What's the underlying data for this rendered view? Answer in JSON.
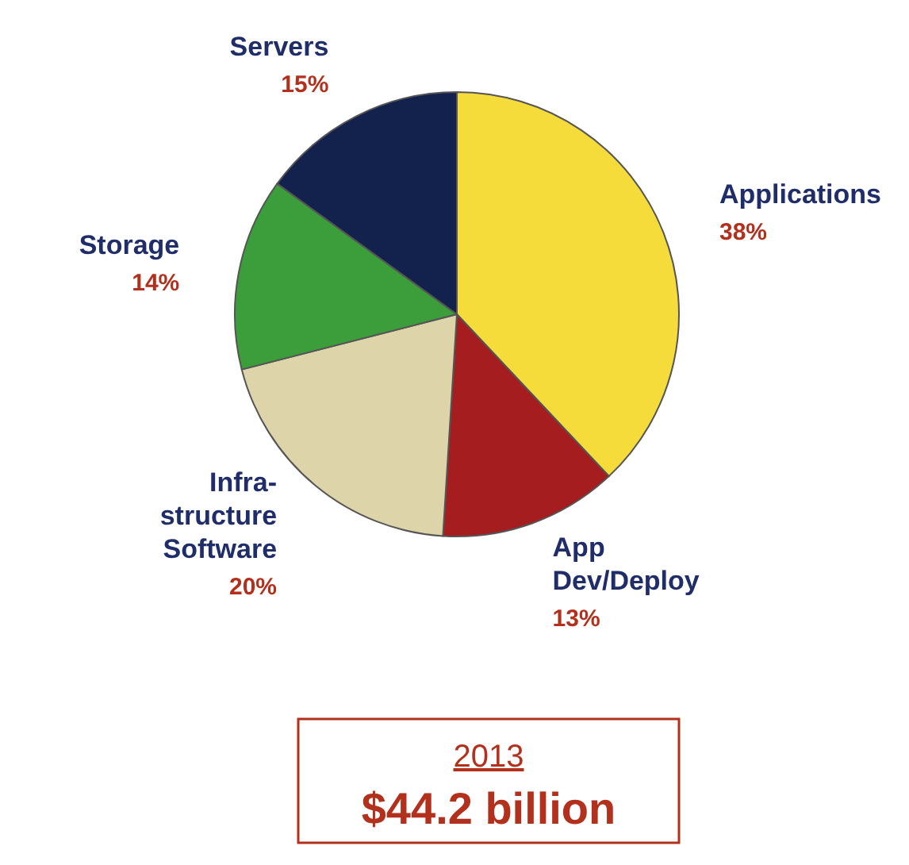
{
  "chart_data": {
    "type": "pie",
    "categories": [
      "Applications",
      "App\nDev/Deploy",
      "Infra-\nstructure\nSoftware",
      "Storage",
      "Servers"
    ],
    "values": [
      38,
      13,
      20,
      14,
      15
    ],
    "value_labels": [
      "38%",
      "13%",
      "20%",
      "14%",
      "15%"
    ],
    "colors": [
      "#f5dc3a",
      "#a51d1f",
      "#ddd4a9",
      "#3b9e3b",
      "#13214d"
    ],
    "annotations": [
      "2013",
      "$44.2 billion"
    ]
  }
}
